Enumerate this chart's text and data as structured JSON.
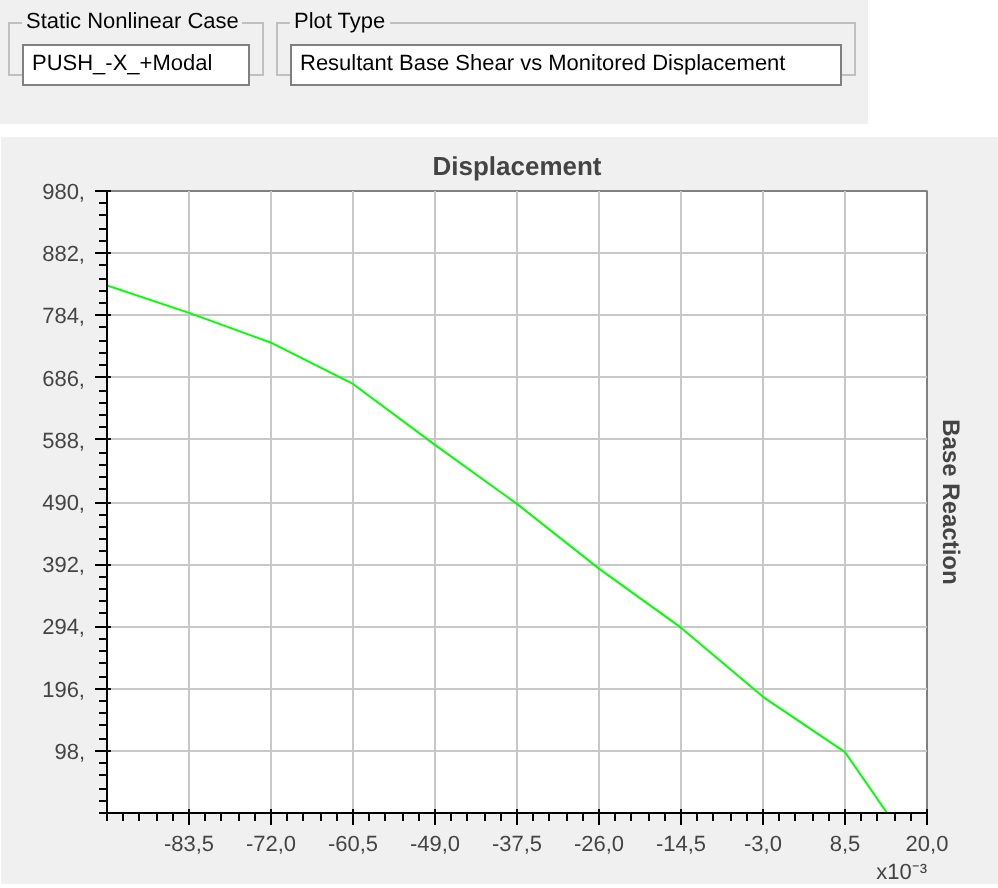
{
  "chart_data": {
    "type": "line",
    "title": "Displacement",
    "ylabel": "Base Reaction",
    "annotations": [
      "Static Nonlinear Case",
      "PUSH_-X_+Modal",
      "Plot Type",
      "Resultant Base Shear vs Monitored Displacement",
      "x10⁻³"
    ],
    "x": [
      -95.0,
      -83.5,
      -72.0,
      -60.5,
      -49.0,
      -37.5,
      -26.0,
      -14.5,
      -3.0,
      8.5,
      14.4
    ],
    "series": [
      {
        "color": "#00ff00",
        "values": [
          831,
          788,
          741,
          676,
          580,
          487,
          385,
          292,
          183,
          96,
          0
        ]
      }
    ],
    "xlim": [
      -95.0,
      20.0
    ],
    "ylim": [
      0,
      980
    ],
    "xticks": [
      {
        "value": -83.5,
        "label": "-83,5"
      },
      {
        "value": -72.0,
        "label": "-72,0"
      },
      {
        "value": -60.5,
        "label": "-60,5"
      },
      {
        "value": -49.0,
        "label": "-49,0"
      },
      {
        "value": -37.5,
        "label": "-37,5"
      },
      {
        "value": -26.0,
        "label": "-26,0"
      },
      {
        "value": -14.5,
        "label": "-14,5"
      },
      {
        "value": -3.0,
        "label": "-3,0"
      },
      {
        "value": 8.5,
        "label": "8,5"
      },
      {
        "value": 20.0,
        "label": "20,0"
      }
    ],
    "yticks": [
      {
        "value": 98,
        "label": "98,"
      },
      {
        "value": 196,
        "label": "196,"
      },
      {
        "value": 294,
        "label": "294,"
      },
      {
        "value": 392,
        "label": "392,"
      },
      {
        "value": 490,
        "label": "490,"
      },
      {
        "value": 588,
        "label": "588,"
      },
      {
        "value": 686,
        "label": "686,"
      },
      {
        "value": 784,
        "label": "784,"
      },
      {
        "value": 882,
        "label": "882,"
      },
      {
        "value": 980,
        "label": "980,"
      }
    ],
    "grid": true,
    "marker": "none",
    "line_style": "solid"
  }
}
